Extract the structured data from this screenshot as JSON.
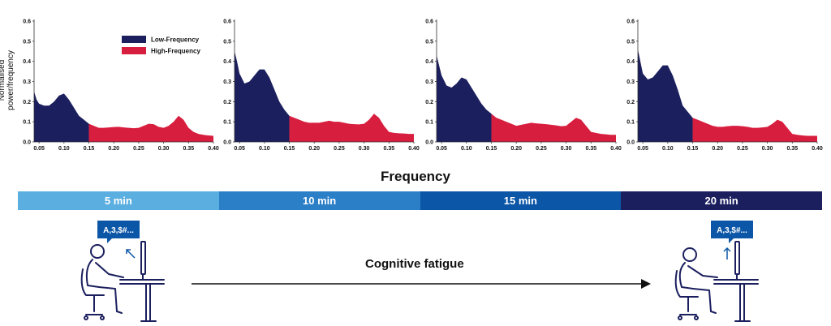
{
  "ylabel": "Normalised power/frequency",
  "xtitle": "Frequency",
  "legend": [
    {
      "label": "Low-Frequency",
      "color": "#1b1f5e"
    },
    {
      "label": "High-Frequency",
      "color": "#d81e3f"
    }
  ],
  "timeline": [
    {
      "label": "5 min",
      "color": "#5aaee0"
    },
    {
      "label": "10 min",
      "color": "#2b7fc7"
    },
    {
      "label": "15 min",
      "color": "#0b56a6"
    },
    {
      "label": "20 min",
      "color": "#1b1f5e"
    }
  ],
  "fatigue_label": "Cognitive fatigue",
  "bubble_text": "A,3,$#...",
  "chart_data": [
    {
      "type": "area",
      "split_x": 0.15,
      "xlim": [
        0.04,
        0.4
      ],
      "ylim": [
        0,
        0.6
      ],
      "xticks": [
        "0.05",
        "0.10",
        "0.15",
        "0.20",
        "0.25",
        "0.30",
        "0.35",
        "0.40"
      ],
      "yticks": [
        "0.0",
        "0.1",
        "0.2",
        "0.3",
        "0.4",
        "0.5",
        "0.6"
      ],
      "x": [
        0.04,
        0.045,
        0.05,
        0.06,
        0.07,
        0.08,
        0.09,
        0.1,
        0.11,
        0.12,
        0.13,
        0.14,
        0.15,
        0.16,
        0.17,
        0.18,
        0.19,
        0.2,
        0.21,
        0.22,
        0.23,
        0.24,
        0.25,
        0.26,
        0.27,
        0.28,
        0.29,
        0.3,
        0.31,
        0.32,
        0.33,
        0.34,
        0.35,
        0.36,
        0.37,
        0.38,
        0.39,
        0.4
      ],
      "y": [
        0.25,
        0.21,
        0.19,
        0.18,
        0.18,
        0.2,
        0.23,
        0.24,
        0.21,
        0.17,
        0.13,
        0.11,
        0.09,
        0.08,
        0.07,
        0.07,
        0.072,
        0.074,
        0.075,
        0.072,
        0.07,
        0.068,
        0.07,
        0.08,
        0.09,
        0.088,
        0.075,
        0.07,
        0.08,
        0.1,
        0.13,
        0.11,
        0.07,
        0.05,
        0.04,
        0.035,
        0.032,
        0.03
      ]
    },
    {
      "type": "area",
      "split_x": 0.15,
      "xlim": [
        0.04,
        0.4
      ],
      "ylim": [
        0,
        0.6
      ],
      "xticks": [
        "0.05",
        "0.10",
        "0.15",
        "0.20",
        "0.25",
        "0.30",
        "0.35",
        "0.40"
      ],
      "yticks": [
        "0.0",
        "0.1",
        "0.2",
        "0.3",
        "0.4",
        "0.5",
        "0.6"
      ],
      "x": [
        0.04,
        0.045,
        0.05,
        0.06,
        0.07,
        0.08,
        0.09,
        0.1,
        0.11,
        0.12,
        0.13,
        0.14,
        0.15,
        0.16,
        0.17,
        0.18,
        0.19,
        0.2,
        0.21,
        0.22,
        0.23,
        0.24,
        0.25,
        0.26,
        0.27,
        0.28,
        0.29,
        0.3,
        0.31,
        0.32,
        0.33,
        0.34,
        0.35,
        0.36,
        0.37,
        0.38,
        0.39,
        0.4
      ],
      "y": [
        0.45,
        0.4,
        0.34,
        0.29,
        0.3,
        0.33,
        0.36,
        0.36,
        0.32,
        0.26,
        0.2,
        0.16,
        0.13,
        0.12,
        0.11,
        0.1,
        0.095,
        0.095,
        0.095,
        0.1,
        0.105,
        0.1,
        0.1,
        0.095,
        0.09,
        0.088,
        0.087,
        0.09,
        0.11,
        0.14,
        0.12,
        0.08,
        0.05,
        0.045,
        0.043,
        0.042,
        0.04,
        0.04
      ]
    },
    {
      "type": "area",
      "split_x": 0.15,
      "xlim": [
        0.04,
        0.4
      ],
      "ylim": [
        0,
        0.6
      ],
      "xticks": [
        "0.05",
        "0.10",
        "0.15",
        "0.20",
        "0.25",
        "0.30",
        "0.35",
        "0.40"
      ],
      "yticks": [
        "0.0",
        "0.1",
        "0.2",
        "0.3",
        "0.4",
        "0.5",
        "0.6"
      ],
      "x": [
        0.04,
        0.045,
        0.05,
        0.06,
        0.07,
        0.08,
        0.09,
        0.1,
        0.11,
        0.12,
        0.13,
        0.14,
        0.15,
        0.16,
        0.17,
        0.18,
        0.19,
        0.2,
        0.21,
        0.22,
        0.23,
        0.24,
        0.25,
        0.26,
        0.27,
        0.28,
        0.29,
        0.3,
        0.31,
        0.32,
        0.33,
        0.34,
        0.35,
        0.36,
        0.37,
        0.38,
        0.39,
        0.4
      ],
      "y": [
        0.43,
        0.38,
        0.33,
        0.28,
        0.27,
        0.29,
        0.32,
        0.31,
        0.27,
        0.23,
        0.19,
        0.16,
        0.14,
        0.12,
        0.11,
        0.1,
        0.09,
        0.08,
        0.085,
        0.09,
        0.095,
        0.092,
        0.09,
        0.088,
        0.085,
        0.082,
        0.078,
        0.08,
        0.1,
        0.12,
        0.11,
        0.08,
        0.05,
        0.045,
        0.04,
        0.038,
        0.035,
        0.035
      ]
    },
    {
      "type": "area",
      "split_x": 0.15,
      "xlim": [
        0.04,
        0.4
      ],
      "ylim": [
        0,
        0.6
      ],
      "xticks": [
        "0.05",
        "0.10",
        "0.15",
        "0.20",
        "0.25",
        "0.30",
        "0.35",
        "0.40"
      ],
      "yticks": [
        "0.0",
        "0.1",
        "0.2",
        "0.3",
        "0.4",
        "0.5",
        "0.6"
      ],
      "x": [
        0.04,
        0.045,
        0.05,
        0.06,
        0.07,
        0.08,
        0.09,
        0.1,
        0.11,
        0.12,
        0.13,
        0.14,
        0.15,
        0.16,
        0.17,
        0.18,
        0.19,
        0.2,
        0.21,
        0.22,
        0.23,
        0.24,
        0.25,
        0.26,
        0.27,
        0.28,
        0.29,
        0.3,
        0.31,
        0.32,
        0.33,
        0.34,
        0.35,
        0.36,
        0.37,
        0.38,
        0.39,
        0.4
      ],
      "y": [
        0.46,
        0.4,
        0.34,
        0.31,
        0.32,
        0.35,
        0.38,
        0.38,
        0.33,
        0.26,
        0.18,
        0.15,
        0.12,
        0.11,
        0.1,
        0.09,
        0.08,
        0.075,
        0.075,
        0.078,
        0.08,
        0.08,
        0.078,
        0.075,
        0.07,
        0.07,
        0.072,
        0.075,
        0.09,
        0.11,
        0.1,
        0.07,
        0.04,
        0.035,
        0.032,
        0.03,
        0.03,
        0.03
      ]
    }
  ]
}
